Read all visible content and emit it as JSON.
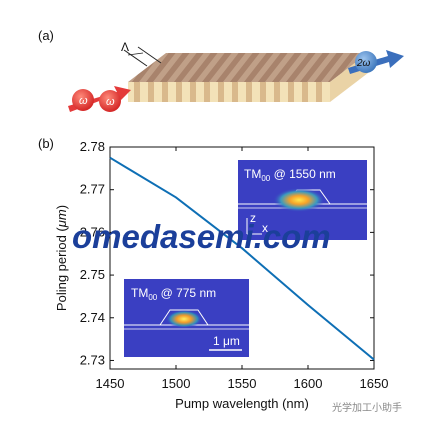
{
  "panels": {
    "a": "(a)",
    "b": "(b)"
  },
  "schematic": {
    "period_symbol": "Λ",
    "input_label": "ω",
    "input_label_2": "ω",
    "output_label": "2ω",
    "colors": {
      "pump": "#e43a3a",
      "sh": "#4a86c8",
      "crystal_top": "#b08c74",
      "crystal_side": "#f1dfb4"
    }
  },
  "insets": {
    "upper": {
      "title_prefix": "TM",
      "title_sub": "00",
      "title_suffix": " @ 1550 nm",
      "axis_z": "z",
      "axis_x": "x"
    },
    "lower": {
      "title_prefix": "TM",
      "title_sub": "00",
      "title_suffix": " @ 775 nm",
      "scalebar": "1 μm"
    }
  },
  "watermark": {
    "text": "omedasemi.com",
    "color": "#1b3f9a"
  },
  "credit": "光学加工小助手",
  "chart_data": {
    "type": "line",
    "title": "",
    "xlabel": "Pump wavelength (nm)",
    "ylabel_prefix": "Poling period (",
    "ylabel_unit": "μm",
    "ylabel_suffix": ")",
    "xlim": [
      1450,
      1650
    ],
    "ylim": [
      2.728,
      2.78
    ],
    "xticks": [
      1450,
      1500,
      1550,
      1600,
      1650
    ],
    "yticks": [
      2.78,
      2.77,
      2.76,
      2.75,
      2.74,
      2.73
    ],
    "ytick_labels": [
      "2.78",
      "2.77",
      "2.76",
      "2.75",
      "2.74",
      "2.73"
    ],
    "series": [
      {
        "color": "#0e6fb5",
        "x": [
          1450,
          1500,
          1550,
          1600,
          1650
        ],
        "y": [
          2.7775,
          2.7682,
          2.7563,
          2.743,
          2.7302
        ]
      }
    ]
  }
}
